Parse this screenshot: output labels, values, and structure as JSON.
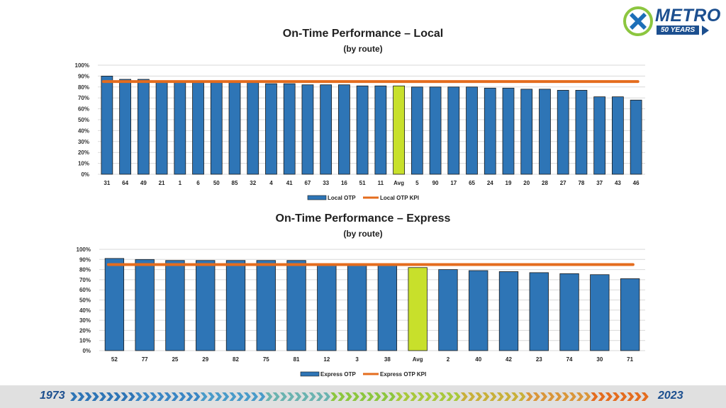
{
  "logo": {
    "brand": "METRO",
    "years": "50 YEARS"
  },
  "footer": {
    "start_year": "1973",
    "end_year": "2023"
  },
  "chart_data": [
    {
      "type": "bar",
      "title": "On-Time Performance – Local",
      "subtitle": "(by route)",
      "categories": [
        "31",
        "64",
        "49",
        "21",
        "1",
        "6",
        "50",
        "85",
        "32",
        "4",
        "41",
        "67",
        "33",
        "16",
        "51",
        "11",
        "Avg",
        "5",
        "90",
        "17",
        "65",
        "24",
        "19",
        "20",
        "28",
        "27",
        "78",
        "37",
        "43",
        "46"
      ],
      "series": [
        {
          "name": "Local OTP",
          "values": [
            90,
            87,
            87,
            85,
            85,
            84,
            84,
            84,
            84,
            83,
            83,
            82,
            82,
            82,
            81,
            81,
            81,
            80,
            80,
            80,
            80,
            79,
            79,
            78,
            78,
            77,
            77,
            71,
            71,
            68
          ]
        },
        {
          "name": "Local OTP KPI",
          "type": "line",
          "value": 85
        }
      ],
      "highlight": "Avg",
      "ylim": [
        0,
        100
      ],
      "yticks": [
        "0%",
        "10%",
        "20%",
        "30%",
        "40%",
        "50%",
        "60%",
        "70%",
        "80%",
        "90%",
        "100%"
      ],
      "legend": "bottom",
      "colors": {
        "bar": "#2e75b6",
        "highlight": "#c8e02b",
        "kpi": "#e46c1e"
      }
    },
    {
      "type": "bar",
      "title": "On-Time Performance – Express",
      "subtitle": "(by route)",
      "categories": [
        "52",
        "77",
        "25",
        "29",
        "82",
        "75",
        "81",
        "12",
        "3",
        "38",
        "Avg",
        "2",
        "40",
        "42",
        "23",
        "74",
        "30",
        "71"
      ],
      "series": [
        {
          "name": "Express OTP",
          "values": [
            91,
            90,
            89,
            89,
            89,
            89,
            89,
            86,
            85,
            84,
            82,
            80,
            79,
            78,
            77,
            76,
            75,
            71
          ]
        },
        {
          "name": "Express OTP KPI",
          "type": "line",
          "value": 85
        }
      ],
      "highlight": "Avg",
      "ylim": [
        0,
        100
      ],
      "yticks": [
        "0%",
        "10%",
        "20%",
        "30%",
        "40%",
        "50%",
        "60%",
        "70%",
        "80%",
        "90%",
        "100%"
      ],
      "legend": "bottom",
      "colors": {
        "bar": "#2e75b6",
        "highlight": "#c8e02b",
        "kpi": "#e46c1e"
      }
    }
  ]
}
